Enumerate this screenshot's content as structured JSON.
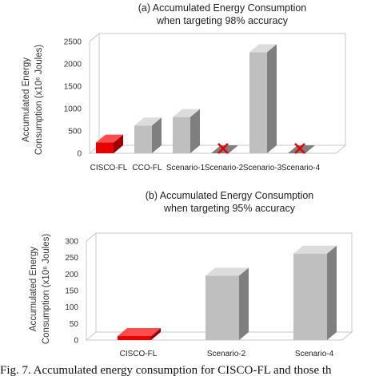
{
  "chart_data": [
    {
      "type": "bar",
      "title": "(a) Accumulated Energy Consumption",
      "subtitle": "when targeting 98% accuracy",
      "ylabel_line1": "Accumulated Energy",
      "ylabel_line2": "Consumption (x10⁶ Joules)",
      "categories": [
        "CISCO-FL",
        "CCO-FL",
        "Scenario-1",
        "Scenario-2",
        "Scenario-3",
        "Scenario-4"
      ],
      "values": [
        240,
        620,
        810,
        0,
        2260,
        0
      ],
      "infeasible": [
        false,
        false,
        false,
        true,
        false,
        true
      ],
      "yticks": [
        0,
        500,
        1000,
        1500,
        2000,
        2500
      ],
      "ylim": [
        0,
        2500
      ],
      "grid": false,
      "colors": {
        "highlight": "#e60000",
        "highlight_side": "#9c0000",
        "highlight_top": "#ff4d4d",
        "bar": "#bfbfbf",
        "bar_side": "#7f7f7f",
        "bar_top": "#dcdcdc",
        "marker": "#e60000"
      }
    },
    {
      "type": "bar",
      "title": "(b) Accumulated Energy Consumption",
      "subtitle": "when targeting 95% accuracy",
      "ylabel_line1": "Accumulated Energy",
      "ylabel_line2": "Consumption (x10⁶ Joules)",
      "categories": [
        "CISCO-FL",
        "Scenario-2",
        "Scenario-4"
      ],
      "values": [
        12,
        195,
        262
      ],
      "infeasible": [
        false,
        false,
        false
      ],
      "yticks": [
        0,
        50,
        100,
        150,
        200,
        250,
        300
      ],
      "ylim": [
        0,
        300
      ],
      "grid": false,
      "colors": {
        "highlight": "#e60000",
        "highlight_side": "#9c0000",
        "highlight_top": "#ff4d4d",
        "bar": "#bfbfbf",
        "bar_side": "#7f7f7f",
        "bar_top": "#dcdcdc",
        "marker": "#e60000"
      }
    }
  ],
  "caption": "Fig. 7.   Accumulated energy consumption for CISCO-FL and those th"
}
